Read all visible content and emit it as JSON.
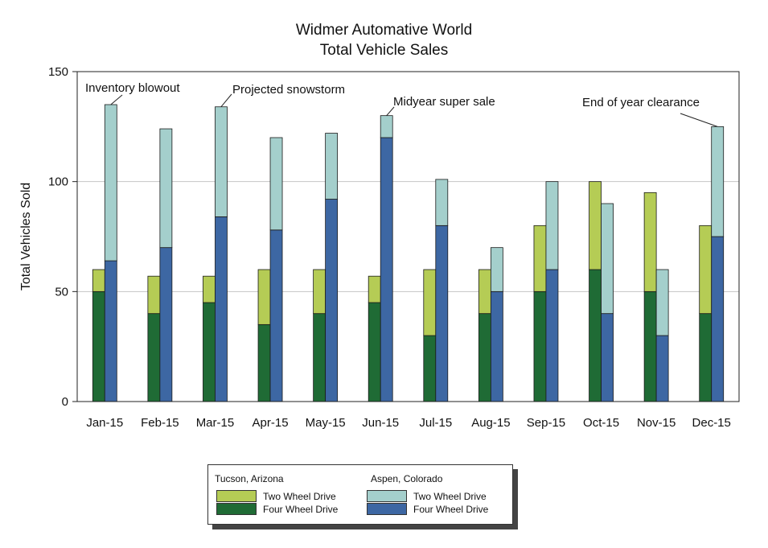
{
  "chart_data": {
    "type": "bar",
    "stacked": true,
    "grouped": true,
    "title_lines": [
      "Widmer Automative World",
      "Total Vehicle Sales"
    ],
    "xlabel": "",
    "ylabel": "Total Vehicles Sold",
    "ylim": [
      0,
      150
    ],
    "yticks": [
      0,
      50,
      100,
      150
    ],
    "grid": "horizontal",
    "categories": [
      "Jan-15",
      "Feb-15",
      "Mar-15",
      "Apr-15",
      "May-15",
      "Jun-15",
      "Jul-15",
      "Aug-15",
      "Sep-15",
      "Oct-15",
      "Nov-15",
      "Dec-15"
    ],
    "groups": [
      {
        "name": "Tucson, Arizona",
        "series": [
          {
            "name": "Four Wheel Drive",
            "color": "#1f6b35",
            "values": [
              50,
              40,
              45,
              35,
              40,
              45,
              30,
              40,
              50,
              60,
              50,
              40
            ]
          },
          {
            "name": "Two Wheel Drive",
            "color": "#b5cc55",
            "values": [
              10,
              17,
              12,
              25,
              20,
              12,
              30,
              20,
              30,
              40,
              45,
              40
            ]
          }
        ]
      },
      {
        "name": "Aspen, Colorado",
        "series": [
          {
            "name": "Four Wheel Drive",
            "color": "#3d67a3",
            "values": [
              64,
              70,
              84,
              78,
              92,
              120,
              80,
              50,
              60,
              40,
              30,
              75
            ]
          },
          {
            "name": "Two Wheel Drive",
            "color": "#a4cfcc",
            "values": [
              71,
              54,
              50,
              42,
              30,
              10,
              21,
              20,
              40,
              50,
              30,
              50
            ]
          }
        ]
      }
    ],
    "annotations": [
      {
        "text": "Inventory blowout",
        "category": "Jan-15",
        "group": "Aspen, Colorado",
        "value": 135
      },
      {
        "text": "Projected snowstorm",
        "category": "Mar-15",
        "group": "Aspen, Colorado",
        "value": 134
      },
      {
        "text": "Midyear super sale",
        "category": "Jun-15",
        "group": "Aspen, Colorado",
        "value": 130
      },
      {
        "text": "End of year clearance",
        "category": "Dec-15",
        "group": "Aspen, Colorado",
        "value": 125
      }
    ],
    "legend_position": "bottom-center"
  },
  "legend": {
    "group1_title": "Tucson, Arizona",
    "group2_title": "Aspen, Colorado",
    "group1_item1": "Two Wheel Drive",
    "group1_item2": "Four Wheel Drive",
    "group2_item1": "Two Wheel Drive",
    "group2_item2": "Four Wheel Drive"
  }
}
